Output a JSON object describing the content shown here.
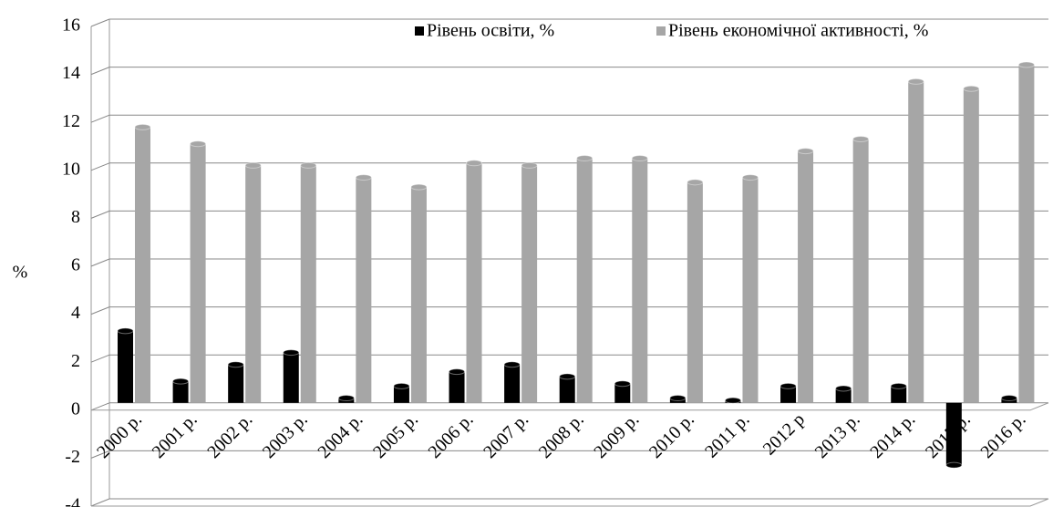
{
  "chart_data": {
    "type": "bar",
    "y_label": "%",
    "categories": [
      "2000 р.",
      "2001 р.",
      "2002 р.",
      "2003 р.",
      "2004 р.",
      "2005 р.",
      "2006 р.",
      "2007 р.",
      "2008 р.",
      "2009 р.",
      "2010 р.",
      "2011 р.",
      "2012 р",
      "2013 р.",
      "2014 р.",
      "2015 р.",
      "2016 р."
    ],
    "series": [
      {
        "name": "Рівень освіти, %",
        "color": "#000000",
        "values": [
          3.0,
          0.9,
          1.6,
          2.1,
          0.2,
          0.7,
          1.3,
          1.6,
          1.1,
          0.8,
          0.2,
          0.1,
          0.7,
          0.6,
          0.7,
          -2.6,
          0.2
        ]
      },
      {
        "name": "Рівень економічної активності, %",
        "color": "#a6a6a6",
        "values": [
          11.5,
          10.8,
          9.9,
          9.9,
          9.4,
          9.0,
          10.0,
          9.9,
          10.2,
          10.2,
          9.2,
          9.4,
          10.5,
          11.0,
          13.4,
          13.1,
          14.1
        ]
      }
    ],
    "ylim": [
      -4,
      16
    ],
    "yticks": [
      -4,
      -2,
      0,
      2,
      4,
      6,
      8,
      10,
      12,
      14,
      16
    ],
    "grid": true,
    "legend": "upper right"
  }
}
